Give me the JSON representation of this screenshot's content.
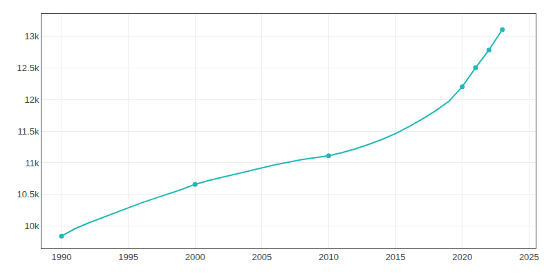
{
  "chart_data": {
    "type": "line",
    "x": [
      1990,
      1991,
      1992,
      1993,
      1994,
      1995,
      1996,
      1997,
      1998,
      1999,
      2000,
      2001,
      2002,
      2003,
      2004,
      2005,
      2006,
      2007,
      2008,
      2009,
      2010,
      2011,
      2012,
      2013,
      2014,
      2015,
      2016,
      2017,
      2018,
      2019,
      2020,
      2021,
      2022,
      2023
    ],
    "series": [
      {
        "type": "line",
        "color": "#20B8B8",
        "line_style": "solid",
        "values": [
          9844,
          9960,
          10050,
          10130,
          10210,
          10290,
          10370,
          10440,
          10510,
          10580,
          10660,
          10720,
          10770,
          10820,
          10870,
          10920,
          10970,
          11010,
          11050,
          11080,
          11110,
          11160,
          11220,
          11290,
          11370,
          11460,
          11570,
          11690,
          11820,
          11970,
          12200,
          12500,
          12780,
          13100
        ]
      },
      {
        "type": "scatter",
        "color": "#20B8B8",
        "marker": "circle",
        "values": [
          9844,
          null,
          null,
          null,
          null,
          null,
          null,
          null,
          null,
          null,
          10660,
          null,
          null,
          null,
          null,
          null,
          null,
          null,
          null,
          null,
          11110,
          null,
          null,
          null,
          null,
          null,
          null,
          null,
          null,
          null,
          12200,
          12500,
          12780,
          13100
        ]
      }
    ],
    "xlim": [
      1988.5,
      2025.5
    ],
    "xticks": [
      1990,
      1995,
      2000,
      2005,
      2010,
      2015,
      2020,
      2025
    ],
    "ylim": [
      9650,
      13350
    ],
    "yticks": [
      {
        "value": 10000,
        "label": "10k"
      },
      {
        "value": 10500,
        "label": "10.5k"
      },
      {
        "value": 11000,
        "label": "11k"
      },
      {
        "value": 11500,
        "label": "11.5k"
      },
      {
        "value": 12000,
        "label": "12k"
      },
      {
        "value": 12500,
        "label": "12.5k"
      },
      {
        "value": 13000,
        "label": "13k"
      }
    ],
    "grid": true
  }
}
